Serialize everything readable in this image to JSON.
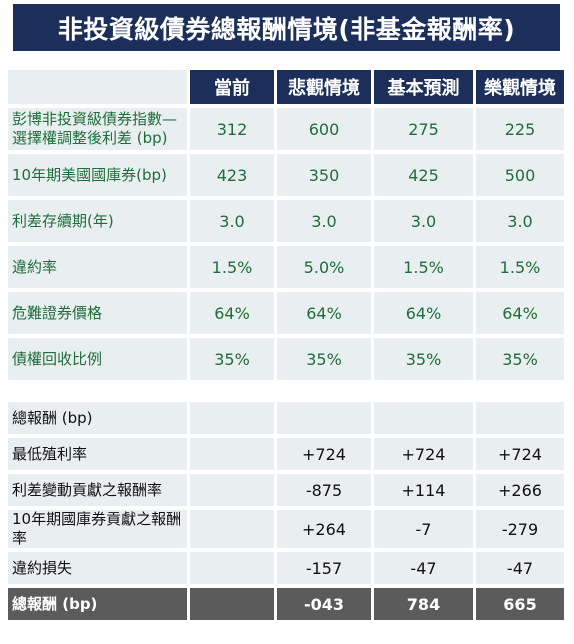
{
  "title": "非投資級債券總報酬情境(非基金報酬率)",
  "columns": [
    "當前",
    "悲觀情境",
    "基本預測",
    "樂觀情境"
  ],
  "assumptions": [
    {
      "label": "彭博非投資級債券指數—選擇權調整後利差 (bp)",
      "values": [
        "312",
        "600",
        "275",
        "225"
      ]
    },
    {
      "label": "10年期美國國庫券(bp)",
      "values": [
        "423",
        "350",
        "425",
        "500"
      ]
    },
    {
      "label": "利差存續期(年)",
      "values": [
        "3.0",
        "3.0",
        "3.0",
        "3.0"
      ]
    },
    {
      "label": "違約率",
      "values": [
        "1.5%",
        "5.0%",
        "1.5%",
        "1.5%"
      ]
    },
    {
      "label": "危難證券價格",
      "values": [
        "64%",
        "64%",
        "64%",
        "64%"
      ]
    },
    {
      "label": "債權回收比例",
      "values": [
        "35%",
        "35%",
        "35%",
        "35%"
      ]
    }
  ],
  "returns_header": "總報酬 (bp)",
  "returns": [
    {
      "label": "最低殖利率",
      "values": [
        "",
        "+724",
        "+724",
        "+724"
      ]
    },
    {
      "label": "利差變動貢獻之報酬率",
      "values": [
        "",
        "-875",
        "+114",
        "+266"
      ]
    },
    {
      "label": "10年期國庫券貢獻之報酬率",
      "values": [
        "",
        "+264",
        "-7",
        "-279"
      ]
    },
    {
      "label": "違約損失",
      "values": [
        "",
        "-157",
        "-47",
        "-47"
      ]
    }
  ],
  "total": {
    "label": "總報酬 (bp)",
    "values": [
      "",
      "-043",
      "784",
      "665"
    ]
  }
}
